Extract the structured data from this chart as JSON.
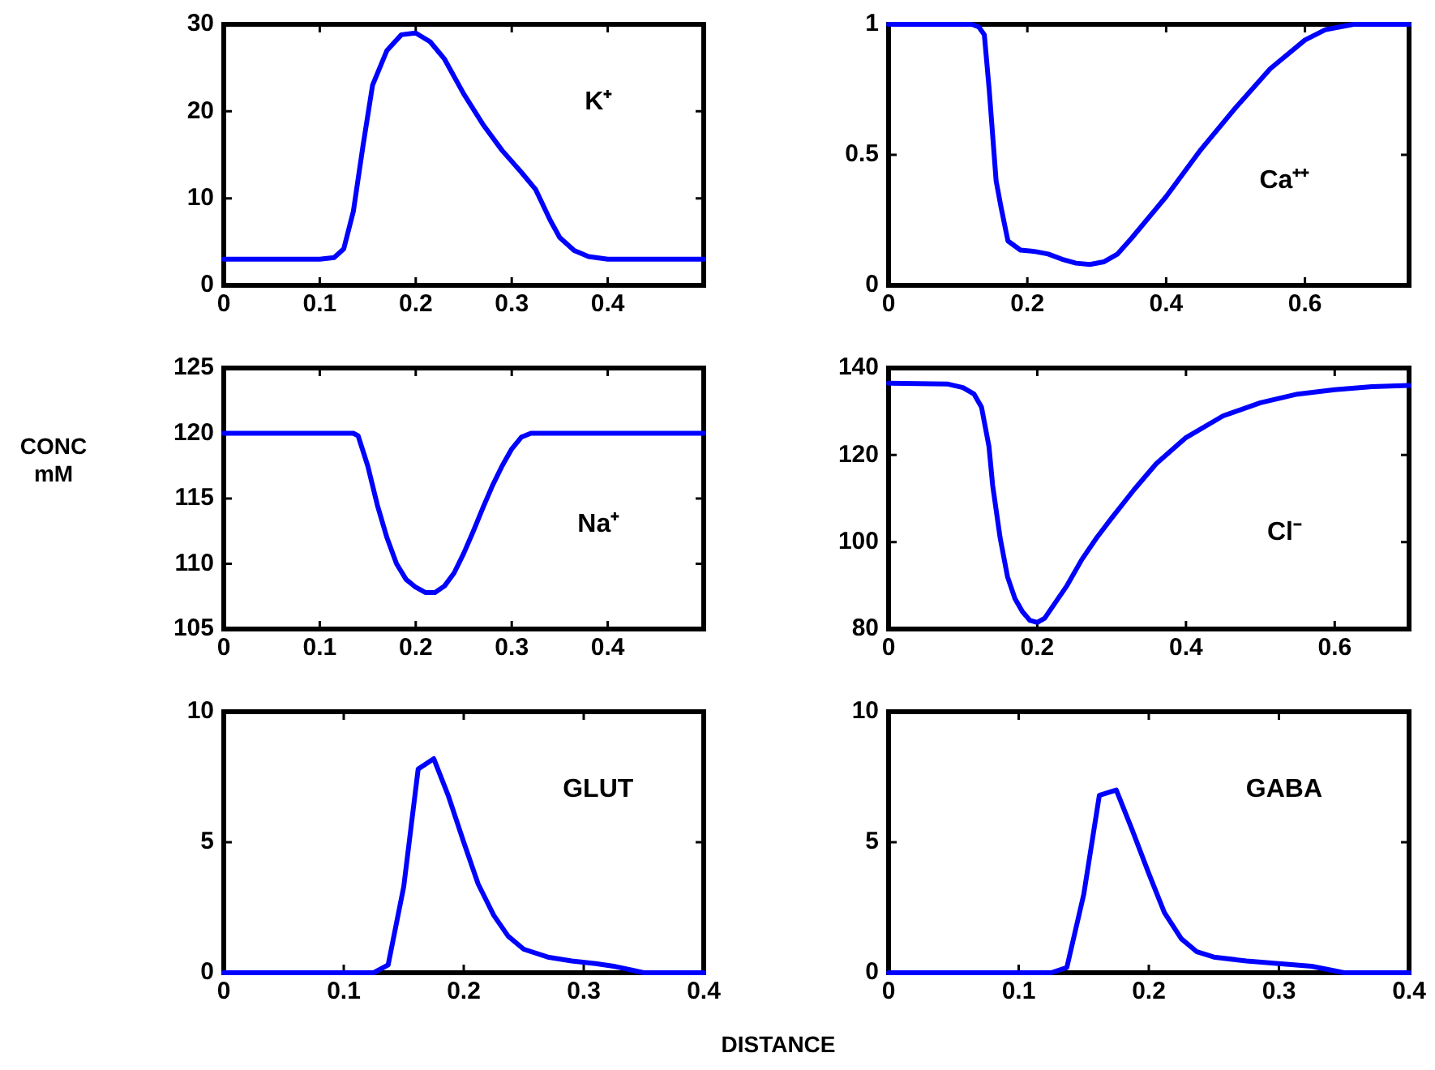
{
  "chart_data": [
    {
      "type": "line",
      "annotations": [
        "K⁺"
      ],
      "xlim": [
        0,
        0.5
      ],
      "xticks": [
        0,
        0.1,
        0.2,
        0.3,
        0.4
      ],
      "ylim": [
        0,
        30
      ],
      "yticks": [
        0,
        10,
        20,
        30
      ],
      "grid": false,
      "series": [
        {
          "color": "#0000ff",
          "x": [
            0,
            0.1,
            0.115,
            0.125,
            0.135,
            0.145,
            0.155,
            0.17,
            0.185,
            0.2,
            0.215,
            0.23,
            0.25,
            0.27,
            0.29,
            0.31,
            0.325,
            0.34,
            0.35,
            0.365,
            0.38,
            0.4,
            0.5
          ],
          "values": [
            3,
            3,
            3.2,
            4.2,
            8.5,
            16,
            23,
            27,
            28.8,
            29,
            28,
            26,
            22,
            18.5,
            15.5,
            13,
            11,
            7.5,
            5.5,
            4,
            3.3,
            3,
            3
          ]
        }
      ]
    },
    {
      "type": "line",
      "annotations": [
        "Ca⁺⁺"
      ],
      "xlim": [
        0,
        0.75
      ],
      "xticks": [
        0,
        0.2,
        0.4,
        0.6
      ],
      "ylim": [
        0,
        1
      ],
      "yticks": [
        0,
        0.5,
        1
      ],
      "grid": false,
      "series": [
        {
          "color": "#0000ff",
          "x": [
            0,
            0.12,
            0.13,
            0.138,
            0.145,
            0.155,
            0.162,
            0.172,
            0.19,
            0.21,
            0.23,
            0.25,
            0.27,
            0.29,
            0.31,
            0.33,
            0.35,
            0.4,
            0.45,
            0.5,
            0.55,
            0.6,
            0.63,
            0.67,
            0.75
          ],
          "values": [
            1,
            1,
            0.99,
            0.96,
            0.75,
            0.4,
            0.3,
            0.17,
            0.135,
            0.13,
            0.12,
            0.1,
            0.085,
            0.08,
            0.09,
            0.12,
            0.18,
            0.34,
            0.52,
            0.68,
            0.83,
            0.94,
            0.98,
            1,
            1
          ]
        }
      ]
    },
    {
      "type": "line",
      "ylabel": "CONC mM",
      "annotations": [
        "Na⁺"
      ],
      "xlim": [
        0,
        0.5
      ],
      "xticks": [
        0,
        0.1,
        0.2,
        0.3,
        0.4
      ],
      "ylim": [
        105,
        125
      ],
      "yticks": [
        105,
        110,
        115,
        120,
        125
      ],
      "grid": false,
      "series": [
        {
          "color": "#0000ff",
          "x": [
            0,
            0.135,
            0.14,
            0.15,
            0.16,
            0.17,
            0.18,
            0.19,
            0.2,
            0.21,
            0.22,
            0.23,
            0.24,
            0.25,
            0.26,
            0.27,
            0.28,
            0.29,
            0.3,
            0.31,
            0.32,
            0.5
          ],
          "values": [
            120,
            120,
            119.8,
            117.5,
            114.5,
            112,
            110,
            108.8,
            108.2,
            107.8,
            107.8,
            108.3,
            109.3,
            110.8,
            112.5,
            114.3,
            116,
            117.5,
            118.8,
            119.7,
            120,
            120
          ]
        }
      ]
    },
    {
      "type": "line",
      "annotations": [
        "Cl⁻"
      ],
      "xlim": [
        0,
        0.7
      ],
      "xticks": [
        0,
        0.2,
        0.4,
        0.6
      ],
      "ylim": [
        80,
        140
      ],
      "yticks": [
        80,
        100,
        120,
        140
      ],
      "grid": false,
      "series": [
        {
          "color": "#0000ff",
          "x": [
            0,
            0.08,
            0.1,
            0.115,
            0.125,
            0.135,
            0.14,
            0.15,
            0.16,
            0.17,
            0.18,
            0.19,
            0.2,
            0.21,
            0.22,
            0.24,
            0.26,
            0.28,
            0.3,
            0.33,
            0.36,
            0.4,
            0.45,
            0.5,
            0.55,
            0.6,
            0.65,
            0.7
          ],
          "values": [
            136.5,
            136.3,
            135.5,
            134,
            131,
            122,
            113,
            101,
            92,
            87,
            84,
            82,
            81.5,
            82.5,
            85,
            90,
            96,
            101,
            105.5,
            112,
            118,
            124,
            129,
            132,
            134,
            135,
            135.7,
            136
          ]
        }
      ]
    },
    {
      "type": "line",
      "xlabel": "DISTANCE",
      "annotations": [
        "GLUT"
      ],
      "xlim": [
        0,
        0.4
      ],
      "xticks": [
        0,
        0.1,
        0.2,
        0.3,
        0.4
      ],
      "ylim": [
        0,
        10
      ],
      "yticks": [
        0,
        5,
        10
      ],
      "grid": false,
      "series": [
        {
          "color": "#0000ff",
          "x": [
            0,
            0.125,
            0.137,
            0.15,
            0.162,
            0.175,
            0.187,
            0.2,
            0.212,
            0.225,
            0.237,
            0.25,
            0.27,
            0.29,
            0.31,
            0.325,
            0.34,
            0.35,
            0.4
          ],
          "values": [
            0,
            0,
            0.3,
            3.3,
            7.8,
            8.2,
            6.8,
            5,
            3.4,
            2.2,
            1.4,
            0.9,
            0.6,
            0.45,
            0.35,
            0.25,
            0.1,
            0,
            0
          ]
        }
      ]
    },
    {
      "type": "line",
      "annotations": [
        "GABA"
      ],
      "xlim": [
        0,
        0.4
      ],
      "xticks": [
        0,
        0.1,
        0.2,
        0.3,
        0.4
      ],
      "ylim": [
        0,
        10
      ],
      "yticks": [
        0,
        5,
        10
      ],
      "grid": false,
      "series": [
        {
          "color": "#0000ff",
          "x": [
            0,
            0.125,
            0.137,
            0.15,
            0.162,
            0.175,
            0.187,
            0.2,
            0.212,
            0.225,
            0.237,
            0.25,
            0.275,
            0.3,
            0.325,
            0.34,
            0.35,
            0.4
          ],
          "values": [
            0,
            0,
            0.2,
            3,
            6.8,
            7,
            5.5,
            3.8,
            2.3,
            1.3,
            0.8,
            0.6,
            0.45,
            0.35,
            0.25,
            0.1,
            0,
            0
          ]
        }
      ]
    }
  ]
}
